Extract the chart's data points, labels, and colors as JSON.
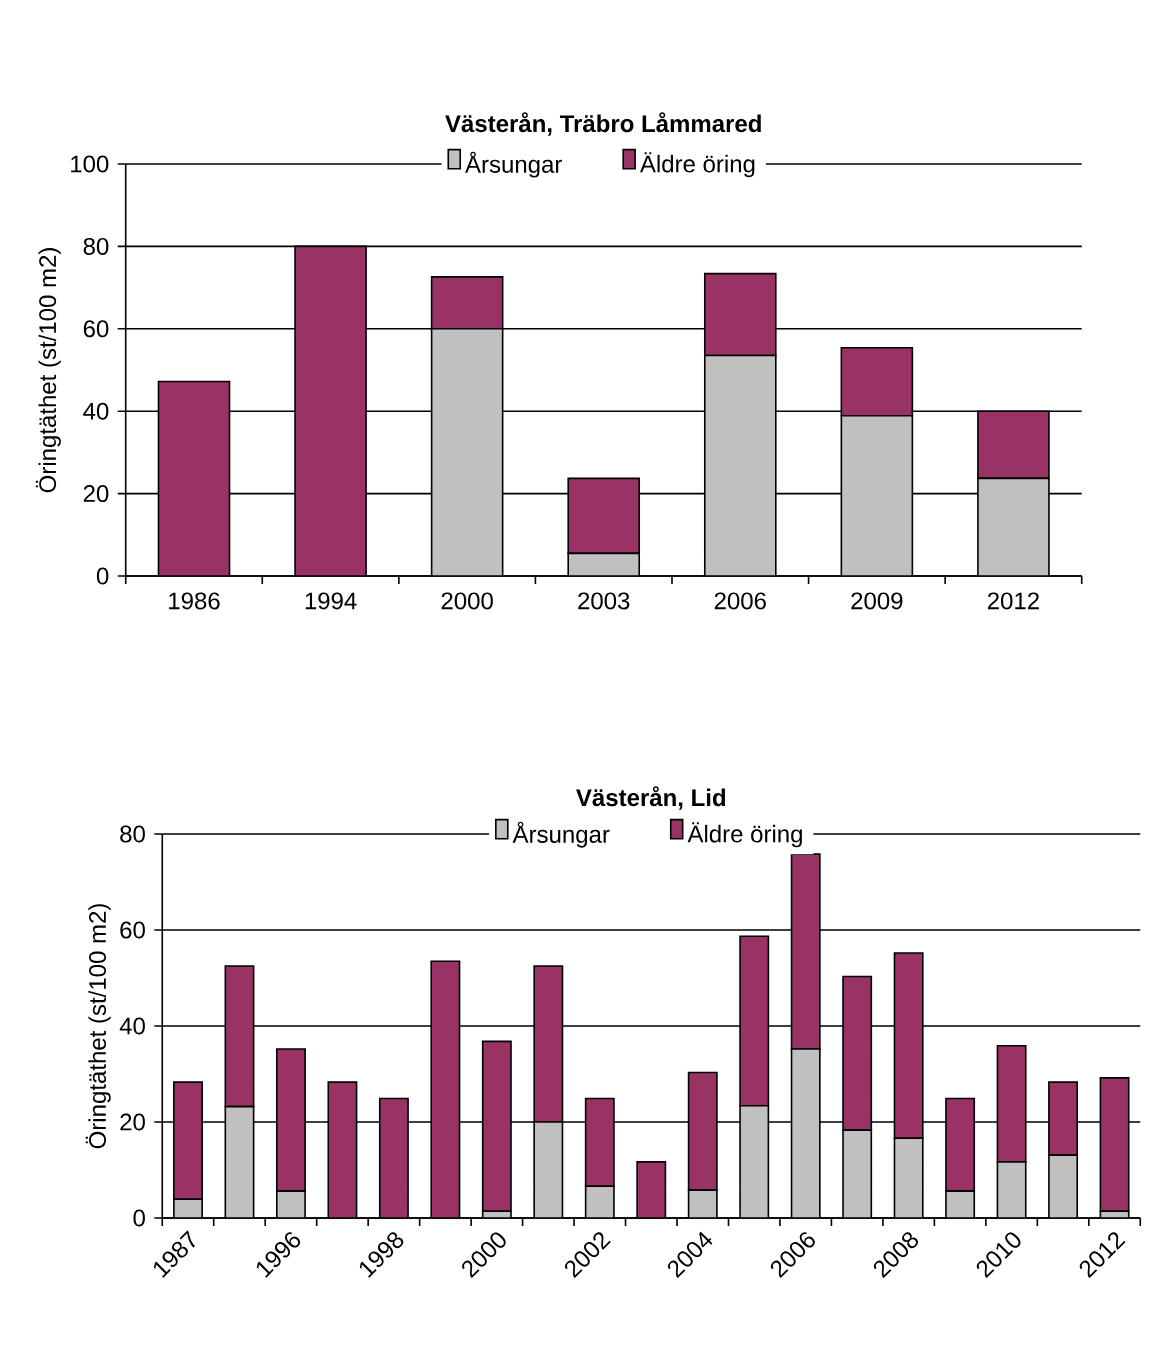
{
  "chart_data": [
    {
      "type": "bar",
      "title": "Västerån, Träbro Låmmared",
      "ylabel": "Öringtäthet (st/100 m2)",
      "categories": [
        "1986",
        "1994",
        "2000",
        "2003",
        "2006",
        "2009",
        "2012"
      ],
      "stacked": true,
      "ylim": [
        0,
        100
      ],
      "yticks": [
        0,
        20,
        40,
        60,
        80,
        100
      ],
      "grid": "y",
      "legend": "top",
      "series": [
        {
          "name": "Årsungar",
          "color": "#c0c0c0",
          "values": [
            0,
            0,
            60,
            5.5,
            53.5,
            38.9,
            23.7
          ]
        },
        {
          "name": "Äldre öring",
          "color": "#993366",
          "values": [
            47.2,
            80,
            12.6,
            18.2,
            19.9,
            16.5,
            16.3
          ]
        }
      ]
    },
    {
      "type": "bar",
      "title": "Västerån, Lid",
      "ylabel": "Öringtäthet (st/100 m2)",
      "categories": [
        "1987",
        null,
        "1996",
        null,
        "1998",
        null,
        "2000",
        null,
        "2002",
        null,
        "2004",
        null,
        "2006",
        null,
        "2008",
        null,
        "2010",
        null,
        "2012"
      ],
      "stacked": true,
      "ylim": [
        0,
        80
      ],
      "yticks": [
        0,
        20,
        40,
        60,
        80
      ],
      "grid": "y",
      "legend": "top",
      "series": [
        {
          "name": "Årsungar",
          "color": "#c0c0c0",
          "values": [
            3.9,
            23.2,
            5.6,
            0,
            0,
            0,
            1.4,
            20,
            6.6,
            0,
            5.8,
            23.4,
            35.2,
            18.3,
            16.6,
            5.6,
            11.7,
            13.1,
            1.4
          ]
        },
        {
          "name": "Äldre öring",
          "color": "#993366",
          "values": [
            24.4,
            29.3,
            29.6,
            28.3,
            24.9,
            53.5,
            35.4,
            32.5,
            18.3,
            11.7,
            24.5,
            35.3,
            40.6,
            32,
            38.6,
            19.3,
            24.2,
            15.2,
            27.8
          ]
        }
      ]
    }
  ]
}
